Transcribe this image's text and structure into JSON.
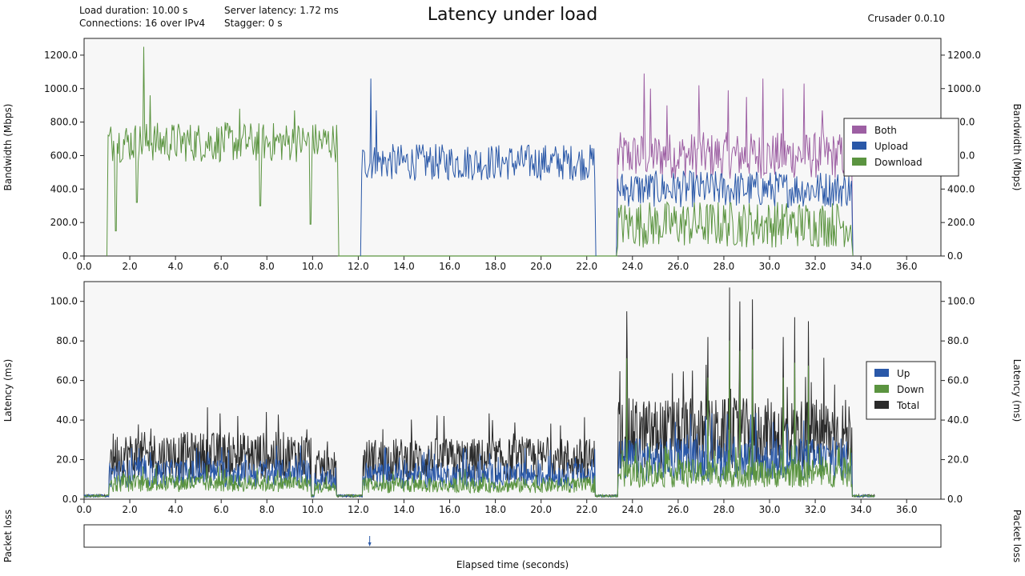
{
  "header": {
    "title": "Latency under load",
    "load_duration": "Load duration: 10.00 s",
    "connections": "Connections: 16 over IPv4",
    "server_latency": "Server latency: 1.72 ms",
    "stagger": "Stagger: 0 s",
    "app_version": "Crusader 0.0.10"
  },
  "colors": {
    "both": "#9d5fa3",
    "upload": "#2a58a8",
    "download": "#5b9440",
    "total": "#2b2b2b",
    "plot_bg": "#f7f7f7",
    "packet_loss_marker": "#2a58a8"
  },
  "chart_data": [
    {
      "id": "bandwidth",
      "type": "line",
      "ylabel": "Bandwidth (Mbps)",
      "xlim": [
        0,
        37.5
      ],
      "ylim": [
        0,
        1300
      ],
      "x_ticks": [
        "0.0",
        "2.0",
        "4.0",
        "6.0",
        "8.0",
        "10.0",
        "12.0",
        "14.0",
        "16.0",
        "18.0",
        "20.0",
        "22.0",
        "24.0",
        "26.0",
        "28.0",
        "30.0",
        "32.0",
        "34.0",
        "36.0"
      ],
      "y_ticks": [
        "0.0",
        "200.0",
        "400.0",
        "600.0",
        "800.0",
        "1000.0",
        "1200.0"
      ],
      "legend_placement": "right",
      "series": [
        {
          "name": "Both",
          "color_key": "both",
          "segments": [
            {
              "start": 23.35,
              "end": 33.6,
              "base": 600,
              "noise": 140,
              "spikes": [
                [
                  24.5,
                  1090
                ],
                [
                  24.8,
                  1000
                ],
                [
                  25.5,
                  900
                ],
                [
                  26.9,
                  1020
                ],
                [
                  28.2,
                  990
                ],
                [
                  29.0,
                  950
                ],
                [
                  29.7,
                  1060
                ],
                [
                  30.6,
                  1000
                ],
                [
                  31.5,
                  1030
                ],
                [
                  32.3,
                  870
                ]
              ]
            }
          ]
        },
        {
          "name": "Upload",
          "color_key": "upload",
          "segments": [
            {
              "start": 12.15,
              "end": 22.35,
              "base": 560,
              "noise": 110,
              "spikes": [
                [
                  12.55,
                  1060
                ],
                [
                  12.8,
                  870
                ]
              ]
            },
            {
              "start": 23.35,
              "end": 33.6,
              "base": 400,
              "noise": 110,
              "spikes": []
            }
          ]
        },
        {
          "name": "Download",
          "color_key": "download",
          "segments": [
            {
              "start": 1.05,
              "end": 11.1,
              "base": 680,
              "noise": 120,
              "spikes": [
                [
                  2.6,
                  1250
                ],
                [
                  2.9,
                  960
                ],
                [
                  6.8,
                  880
                ],
                [
                  9.2,
                  870
                ]
              ],
              "dips": [
                [
                  1.4,
                  150
                ],
                [
                  2.3,
                  320
                ],
                [
                  7.7,
                  300
                ],
                [
                  9.9,
                  190
                ]
              ]
            },
            {
              "start": 23.35,
              "end": 33.6,
              "base": 190,
              "noise": 140,
              "spikes": []
            }
          ]
        }
      ]
    },
    {
      "id": "latency",
      "type": "line",
      "ylabel": "Latency (ms)",
      "xlim": [
        0,
        37.5
      ],
      "ylim": [
        0,
        110
      ],
      "x_ticks": [
        "0.0",
        "2.0",
        "4.0",
        "6.0",
        "8.0",
        "10.0",
        "12.0",
        "14.0",
        "16.0",
        "18.0",
        "20.0",
        "22.0",
        "24.0",
        "26.0",
        "28.0",
        "30.0",
        "32.0",
        "34.0",
        "36.0"
      ],
      "y_ticks": [
        "0.0",
        "20.0",
        "40.0",
        "60.0",
        "80.0",
        "100.0"
      ],
      "legend_placement": "right",
      "series": [
        {
          "name": "Up",
          "color_key": "upload"
        },
        {
          "name": "Down",
          "color_key": "download"
        },
        {
          "name": "Total",
          "color_key": "total"
        }
      ],
      "load_segments": [
        {
          "start": 1.1,
          "end": 9.95,
          "total": 22,
          "up": 13,
          "down": 8
        },
        {
          "start": 10.1,
          "end": 11.05,
          "total": 16,
          "up": 9,
          "down": 6
        },
        {
          "start": 12.2,
          "end": 22.35,
          "total": 20,
          "up": 12,
          "down": 7
        },
        {
          "start": 23.35,
          "end": 33.6,
          "total": 33,
          "up": 20,
          "down": 13,
          "spikes": [
            [
              23.75,
              95
            ],
            [
              27.3,
              82
            ],
            [
              28.25,
              107
            ],
            [
              28.7,
              100
            ],
            [
              29.25,
              101
            ],
            [
              30.6,
              82
            ],
            [
              31.1,
              92
            ],
            [
              31.7,
              90
            ]
          ]
        }
      ],
      "idle_level": 1.7,
      "idle_extent": [
        0,
        34.6
      ]
    },
    {
      "id": "packet-loss",
      "type": "scatter",
      "ylabel": "Packet loss",
      "xlim": [
        0,
        37.5
      ],
      "events": [
        {
          "x": 12.5,
          "direction": "up"
        }
      ]
    }
  ],
  "xlabel": "Elapsed time (seconds)"
}
